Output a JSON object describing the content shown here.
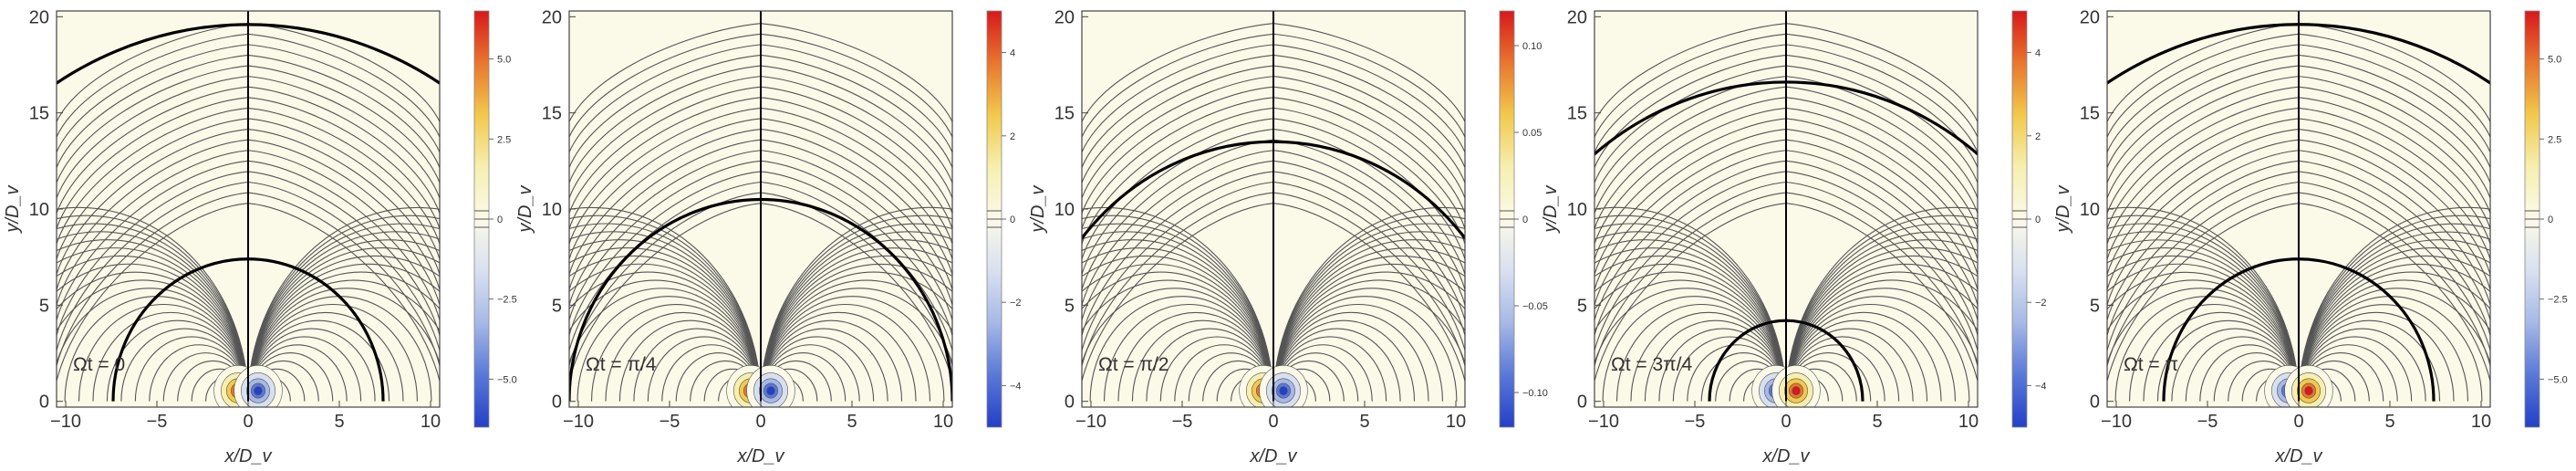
{
  "chart_data": [
    {
      "type": "contour",
      "panel_index": 0,
      "annotation": "Ωt = 0",
      "xlabel": "x/D_v",
      "ylabel": "y/D_v",
      "xlim": [
        -10.5,
        10.5
      ],
      "ylim": [
        -0.3,
        20.3
      ],
      "xticks": [
        "−10",
        "−5",
        "0",
        "5",
        "10"
      ],
      "yticks": [
        "0",
        "5",
        "10",
        "15",
        "20"
      ],
      "separatrix_radii": [
        7.4,
        19.6
      ],
      "colorbar": {
        "ticks": [
          "5.0",
          "2.5",
          "0",
          "−2.5",
          "−5.0"
        ],
        "range": [
          -6.5,
          6.5
        ]
      },
      "blob_signs": [
        1,
        -1
      ]
    },
    {
      "type": "contour",
      "panel_index": 1,
      "annotation": "Ωt = π/4",
      "xlabel": "x/D_v",
      "ylabel": "y/D_v",
      "xlim": [
        -10.5,
        10.5
      ],
      "ylim": [
        -0.3,
        20.3
      ],
      "xticks": [
        "−10",
        "−5",
        "0",
        "5",
        "10"
      ],
      "yticks": [
        "0",
        "5",
        "10",
        "15",
        "20"
      ],
      "separatrix_radii": [
        10.5
      ],
      "colorbar": {
        "ticks": [
          "4",
          "2",
          "0",
          "−2",
          "−4"
        ],
        "range": [
          -5,
          5
        ]
      },
      "blob_signs": [
        1,
        -1
      ]
    },
    {
      "type": "contour",
      "panel_index": 2,
      "annotation": "Ωt = π/2",
      "xlabel": "x/D_v",
      "ylabel": "y/D_v",
      "xlim": [
        -10.5,
        10.5
      ],
      "ylim": [
        -0.3,
        20.3
      ],
      "xticks": [
        "−10",
        "−5",
        "0",
        "5",
        "10"
      ],
      "yticks": [
        "0",
        "5",
        "10",
        "15",
        "20"
      ],
      "separatrix_radii": [
        13.5
      ],
      "colorbar": {
        "ticks": [
          "0.10",
          "0.05",
          "0",
          "−0.05",
          "−0.10"
        ],
        "range": [
          -0.12,
          0.12
        ]
      },
      "blob_signs": [
        1,
        -1
      ]
    },
    {
      "type": "contour",
      "panel_index": 3,
      "annotation": "Ωt = 3π/4",
      "xlabel": "x/D_v",
      "ylabel": "y/D_v",
      "xlim": [
        -10.5,
        10.5
      ],
      "ylim": [
        -0.3,
        20.3
      ],
      "xticks": [
        "−10",
        "−5",
        "0",
        "5",
        "10"
      ],
      "yticks": [
        "0",
        "5",
        "10",
        "15",
        "20"
      ],
      "separatrix_radii": [
        4.2,
        16.6
      ],
      "colorbar": {
        "ticks": [
          "4",
          "2",
          "0",
          "−2",
          "−4"
        ],
        "range": [
          -5,
          5
        ]
      },
      "blob_signs": [
        -1,
        1
      ]
    },
    {
      "type": "contour",
      "panel_index": 4,
      "annotation": "Ωt = π",
      "xlabel": "x/D_v",
      "ylabel": "y/D_v",
      "xlim": [
        -10.5,
        10.5
      ],
      "ylim": [
        -0.3,
        20.3
      ],
      "xticks": [
        "−10",
        "−5",
        "0",
        "5",
        "10"
      ],
      "yticks": [
        "0",
        "5",
        "10",
        "15",
        "20"
      ],
      "separatrix_radii": [
        7.4,
        19.6
      ],
      "colorbar": {
        "ticks": [
          "5.0",
          "2.5",
          "0",
          "−2.5",
          "−5.0"
        ],
        "range": [
          -6.5,
          6.5
        ]
      },
      "blob_signs": [
        -1,
        1
      ]
    }
  ],
  "colors": {
    "background": "#fbf9e8",
    "contour_line": "#555555",
    "separatrix": "#000000",
    "positive": [
      "#fbf9e8",
      "#f6efb0",
      "#f2c94c",
      "#e8762e",
      "#d7191c"
    ],
    "negative": [
      "#fbf9e8",
      "#d8e0f0",
      "#a6b8e6",
      "#5a78d8",
      "#2340c8"
    ]
  }
}
